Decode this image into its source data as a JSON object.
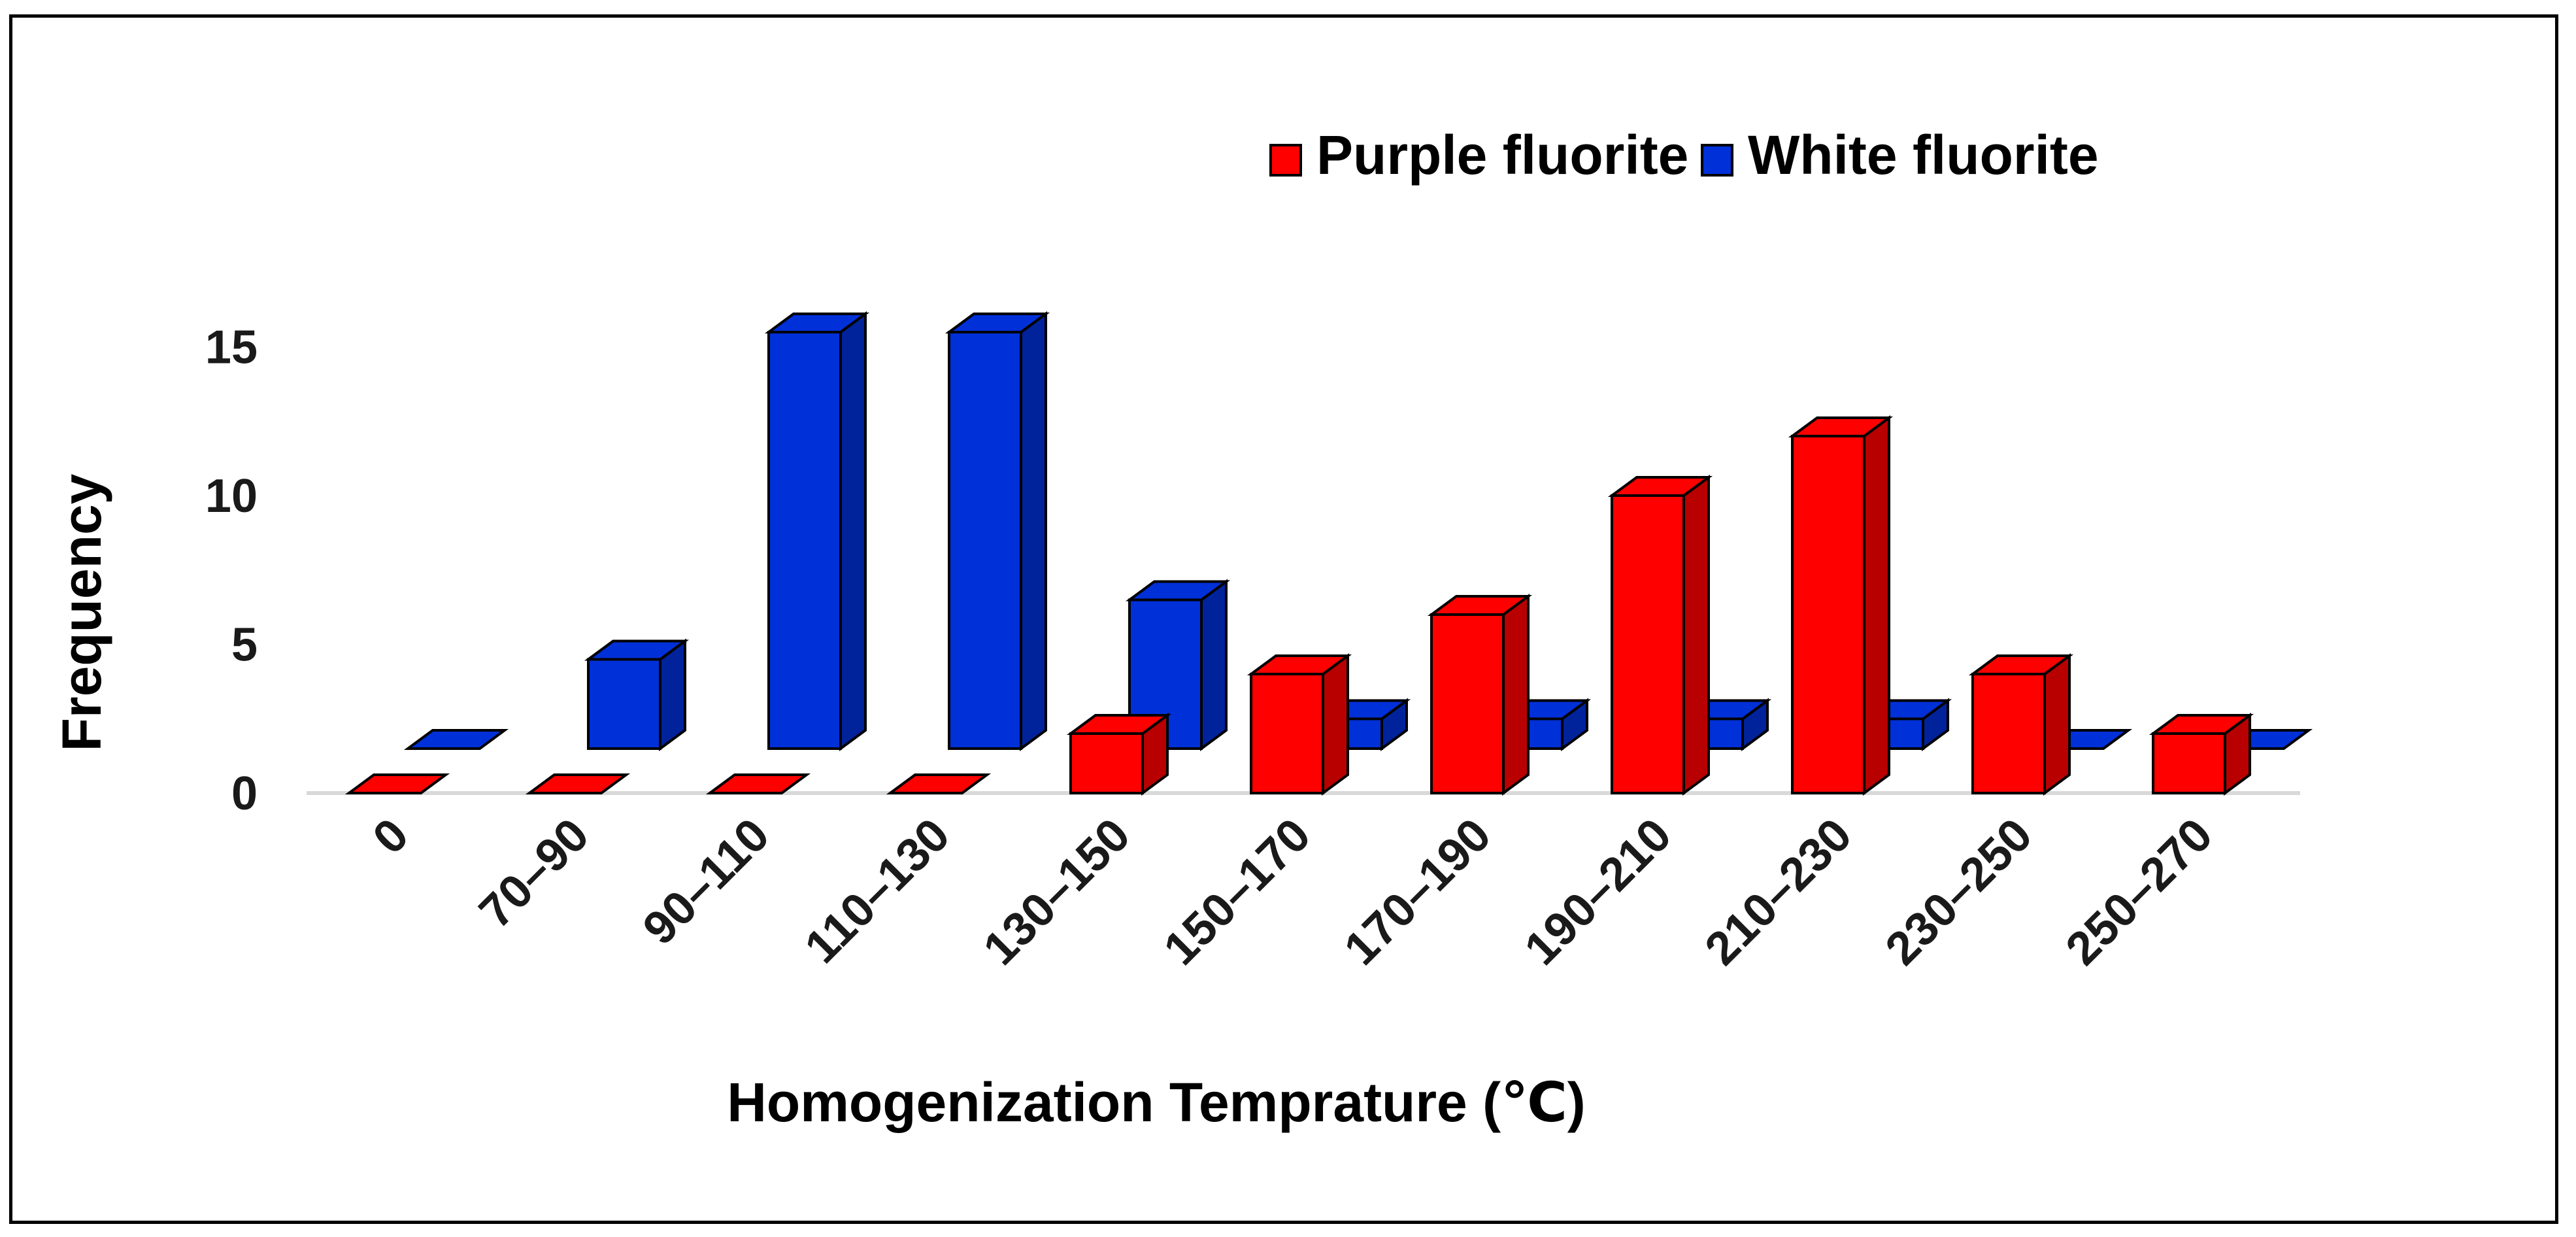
{
  "chart_data": {
    "type": "bar",
    "style": "3d-clustered-column",
    "title": "",
    "xlabel": "Homogenization Temprature (℃)",
    "ylabel": "Frequency",
    "ylim": [
      0,
      16
    ],
    "yticks": [
      0,
      5,
      10,
      15
    ],
    "grid": false,
    "legend_position": "top-right",
    "categories": [
      "0",
      "70–90",
      "90–110",
      "110–130",
      "130–150",
      "150–170",
      "170–190",
      "190–210",
      "210–230",
      "230–250",
      "250–270"
    ],
    "series": [
      {
        "name": "Purple fluorite",
        "color": "#ff0000",
        "values": [
          0,
          0,
          0,
          0,
          2,
          4,
          6,
          10,
          12,
          4,
          2
        ]
      },
      {
        "name": "White fluorite",
        "color": "#0030d8",
        "values": [
          0,
          3,
          14,
          14,
          5,
          1,
          1,
          1,
          1,
          0,
          0
        ]
      }
    ]
  }
}
